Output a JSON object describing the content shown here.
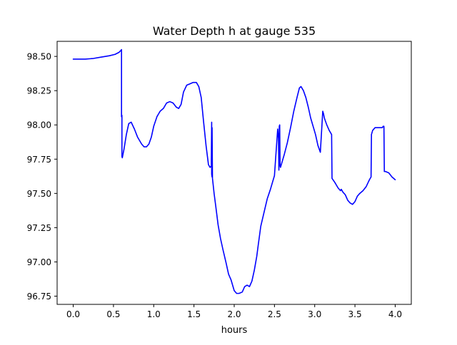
{
  "chart_data": {
    "type": "line",
    "title": "Water Depth h at gauge 535",
    "xlabel": "hours",
    "ylabel": "",
    "xlim": [
      -0.2,
      4.2
    ],
    "ylim": [
      96.69,
      98.61
    ],
    "xticks": [
      0.0,
      0.5,
      1.0,
      1.5,
      2.0,
      2.5,
      3.0,
      3.5,
      4.0
    ],
    "xtick_labels": [
      "0.0",
      "0.5",
      "1.0",
      "1.5",
      "2.0",
      "2.5",
      "3.0",
      "3.5",
      "4.0"
    ],
    "yticks": [
      96.75,
      97.0,
      97.25,
      97.5,
      97.75,
      98.0,
      98.25,
      98.5
    ],
    "ytick_labels": [
      "96.75",
      "97.00",
      "97.25",
      "97.50",
      "97.75",
      "98.00",
      "98.25",
      "98.50"
    ],
    "grid": false,
    "legend": "none",
    "series": [
      {
        "color": "#0000ff",
        "x": [
          0.0,
          0.15,
          0.25,
          0.35,
          0.45,
          0.52,
          0.57,
          0.595,
          0.6,
          0.6,
          0.605,
          0.605,
          0.61,
          0.63,
          0.66,
          0.69,
          0.72,
          0.76,
          0.8,
          0.85,
          0.88,
          0.91,
          0.94,
          0.97,
          1.0,
          1.04,
          1.08,
          1.12,
          1.16,
          1.2,
          1.24,
          1.28,
          1.31,
          1.34,
          1.37,
          1.41,
          1.45,
          1.49,
          1.53,
          1.56,
          1.59,
          1.62,
          1.65,
          1.68,
          1.7,
          1.715,
          1.72,
          1.72,
          1.725,
          1.725,
          1.73,
          1.75,
          1.77,
          1.8,
          1.83,
          1.86,
          1.9,
          1.93,
          1.96,
          2.0,
          2.03,
          2.06,
          2.1,
          2.13,
          2.16,
          2.19,
          2.22,
          2.25,
          2.28,
          2.3,
          2.33,
          2.37,
          2.41,
          2.45,
          2.5,
          2.54,
          2.55,
          2.555,
          2.56,
          2.565,
          2.57,
          2.575,
          2.58,
          2.59,
          2.62,
          2.66,
          2.7,
          2.74,
          2.78,
          2.81,
          2.83,
          2.86,
          2.89,
          2.92,
          2.95,
          2.98,
          3.01,
          3.04,
          3.07,
          3.1,
          3.11,
          3.11,
          3.12,
          3.15,
          3.18,
          3.21,
          3.215,
          3.215,
          3.25,
          3.29,
          3.32,
          3.33,
          3.35,
          3.38,
          3.41,
          3.44,
          3.47,
          3.5,
          3.53,
          3.56,
          3.6,
          3.64,
          3.68,
          3.7,
          3.705,
          3.705,
          3.72,
          3.75,
          3.8,
          3.84,
          3.85,
          3.86,
          3.865,
          3.865,
          3.88,
          3.92,
          3.96,
          4.0
        ],
        "values": [
          98.48,
          98.48,
          98.485,
          98.495,
          98.505,
          98.515,
          98.53,
          98.545,
          98.55,
          98.06,
          98.07,
          97.77,
          97.76,
          97.82,
          97.93,
          98.01,
          98.02,
          97.97,
          97.91,
          97.86,
          97.84,
          97.84,
          97.86,
          97.91,
          97.99,
          98.06,
          98.1,
          98.12,
          98.16,
          98.17,
          98.16,
          98.13,
          98.12,
          98.15,
          98.24,
          98.29,
          98.3,
          98.31,
          98.31,
          98.28,
          98.2,
          98.02,
          97.85,
          97.71,
          97.69,
          97.7,
          98.02,
          97.64,
          97.62,
          97.98,
          97.61,
          97.5,
          97.41,
          97.27,
          97.17,
          97.09,
          96.99,
          96.91,
          96.87,
          96.79,
          96.77,
          96.77,
          96.78,
          96.82,
          96.83,
          96.82,
          96.86,
          96.94,
          97.04,
          97.13,
          97.26,
          97.36,
          97.46,
          97.53,
          97.63,
          97.97,
          97.9,
          97.67,
          97.99,
          98.0,
          97.7,
          97.69,
          97.7,
          97.72,
          97.78,
          97.87,
          97.98,
          98.1,
          98.2,
          98.27,
          98.28,
          98.25,
          98.2,
          98.13,
          98.05,
          97.99,
          97.93,
          97.85,
          97.8,
          98.1,
          98.08,
          98.08,
          98.05,
          98.0,
          97.96,
          97.93,
          97.62,
          97.61,
          97.58,
          97.54,
          97.52,
          97.53,
          97.51,
          97.49,
          97.45,
          97.43,
          97.42,
          97.44,
          97.48,
          97.5,
          97.52,
          97.55,
          97.6,
          97.62,
          97.92,
          97.93,
          97.96,
          97.98,
          97.98,
          97.98,
          97.99,
          97.99,
          97.66,
          97.66,
          97.66,
          97.65,
          97.62,
          97.6
        ]
      }
    ]
  }
}
